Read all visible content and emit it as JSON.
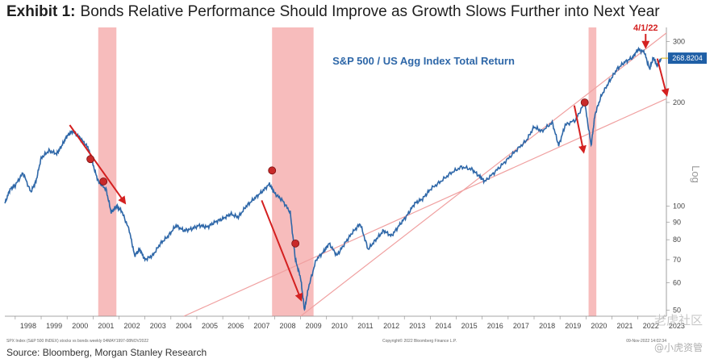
{
  "header": {
    "exhibit": "Exhibit 1:",
    "title": "Bonds Relative Performance Should Improve as Growth Slows Further into Next Year"
  },
  "source": "Source: Bloomberg, Morgan Stanley Research",
  "watermark": "老虎社区",
  "watermark2": "@小虎资管",
  "footnote_left": "SPX Index (S&P 500 INDEX) stocks vs bonds  weekly 04MAY1997-08NOV2022",
  "footnote_mid": "Copyright© 2022 Bloomberg Finance L.P.",
  "footnote_right": "09-Nov-2022 14:02:34",
  "colors": {
    "line": "#2e67a8",
    "shade": "#f4a6a6",
    "arrow": "#d42020",
    "channel": "#f0a0a0",
    "badge": "#1f5fa6"
  },
  "chart_data": {
    "type": "line",
    "title": "S&P 500 / US Agg Index Total Return",
    "ylabel": "Log",
    "yscale": "log",
    "ylim": [
      48,
      330
    ],
    "xlim": [
      1997.6,
      2023.1
    ],
    "x_ticks": [
      "1998",
      "1999",
      "2000",
      "2001",
      "2002",
      "2003",
      "2004",
      "2005",
      "2006",
      "2007",
      "2008",
      "2009",
      "2010",
      "2011",
      "2012",
      "2013",
      "2014",
      "2015",
      "2016",
      "2017",
      "2018",
      "2019",
      "2020",
      "2021",
      "2022",
      "2023"
    ],
    "y_ticks": [
      50,
      60,
      70,
      80,
      90,
      100,
      200,
      300
    ],
    "last_value_label": "268.8204",
    "annotation": "4/1/22",
    "recessions": [
      [
        2001.2,
        2001.9
      ],
      [
        2007.9,
        2009.5
      ],
      [
        2020.1,
        2020.4
      ]
    ],
    "series": [
      {
        "values": [
          [
            1997.6,
            102
          ],
          [
            1997.8,
            112
          ],
          [
            1998.0,
            115
          ],
          [
            1998.3,
            125
          ],
          [
            1998.6,
            110
          ],
          [
            1998.8,
            118
          ],
          [
            1999.0,
            138
          ],
          [
            1999.3,
            145
          ],
          [
            1999.6,
            142
          ],
          [
            1999.8,
            150
          ],
          [
            2000.0,
            160
          ],
          [
            2000.2,
            165
          ],
          [
            2000.5,
            158
          ],
          [
            2000.8,
            148
          ],
          [
            2001.0,
            132
          ],
          [
            2001.2,
            118
          ],
          [
            2001.5,
            112
          ],
          [
            2001.7,
            96
          ],
          [
            2001.9,
            100
          ],
          [
            2002.1,
            97
          ],
          [
            2002.4,
            85
          ],
          [
            2002.6,
            72
          ],
          [
            2002.8,
            75
          ],
          [
            2003.0,
            70
          ],
          [
            2003.3,
            72
          ],
          [
            2003.6,
            78
          ],
          [
            2003.9,
            82
          ],
          [
            2004.2,
            88
          ],
          [
            2004.5,
            85
          ],
          [
            2004.8,
            86
          ],
          [
            2005.1,
            88
          ],
          [
            2005.4,
            87
          ],
          [
            2005.7,
            90
          ],
          [
            2006.0,
            92
          ],
          [
            2006.3,
            95
          ],
          [
            2006.6,
            93
          ],
          [
            2006.9,
            100
          ],
          [
            2007.2,
            105
          ],
          [
            2007.5,
            110
          ],
          [
            2007.8,
            116
          ],
          [
            2008.0,
            109
          ],
          [
            2008.3,
            104
          ],
          [
            2008.6,
            96
          ],
          [
            2008.8,
            70
          ],
          [
            2009.0,
            62
          ],
          [
            2009.15,
            50
          ],
          [
            2009.3,
            58
          ],
          [
            2009.6,
            70
          ],
          [
            2009.9,
            74
          ],
          [
            2010.1,
            78
          ],
          [
            2010.4,
            72
          ],
          [
            2010.7,
            78
          ],
          [
            2011.0,
            84
          ],
          [
            2011.3,
            89
          ],
          [
            2011.6,
            75
          ],
          [
            2011.9,
            80
          ],
          [
            2012.2,
            85
          ],
          [
            2012.5,
            82
          ],
          [
            2012.8,
            88
          ],
          [
            2013.1,
            94
          ],
          [
            2013.4,
            102
          ],
          [
            2013.7,
            105
          ],
          [
            2014.0,
            112
          ],
          [
            2014.4,
            118
          ],
          [
            2014.8,
            125
          ],
          [
            2015.2,
            130
          ],
          [
            2015.6,
            128
          ],
          [
            2015.9,
            122
          ],
          [
            2016.1,
            118
          ],
          [
            2016.5,
            126
          ],
          [
            2016.9,
            135
          ],
          [
            2017.3,
            145
          ],
          [
            2017.7,
            155
          ],
          [
            2018.0,
            170
          ],
          [
            2018.3,
            165
          ],
          [
            2018.7,
            175
          ],
          [
            2018.95,
            150
          ],
          [
            2019.2,
            172
          ],
          [
            2019.6,
            178
          ],
          [
            2019.95,
            200
          ],
          [
            2020.2,
            150
          ],
          [
            2020.35,
            185
          ],
          [
            2020.6,
            210
          ],
          [
            2020.9,
            230
          ],
          [
            2021.2,
            250
          ],
          [
            2021.5,
            262
          ],
          [
            2021.8,
            270
          ],
          [
            2022.0,
            285
          ],
          [
            2022.25,
            280
          ],
          [
            2022.45,
            250
          ],
          [
            2022.6,
            270
          ],
          [
            2022.75,
            255
          ],
          [
            2022.9,
            268.8
          ]
        ]
      }
    ]
  }
}
